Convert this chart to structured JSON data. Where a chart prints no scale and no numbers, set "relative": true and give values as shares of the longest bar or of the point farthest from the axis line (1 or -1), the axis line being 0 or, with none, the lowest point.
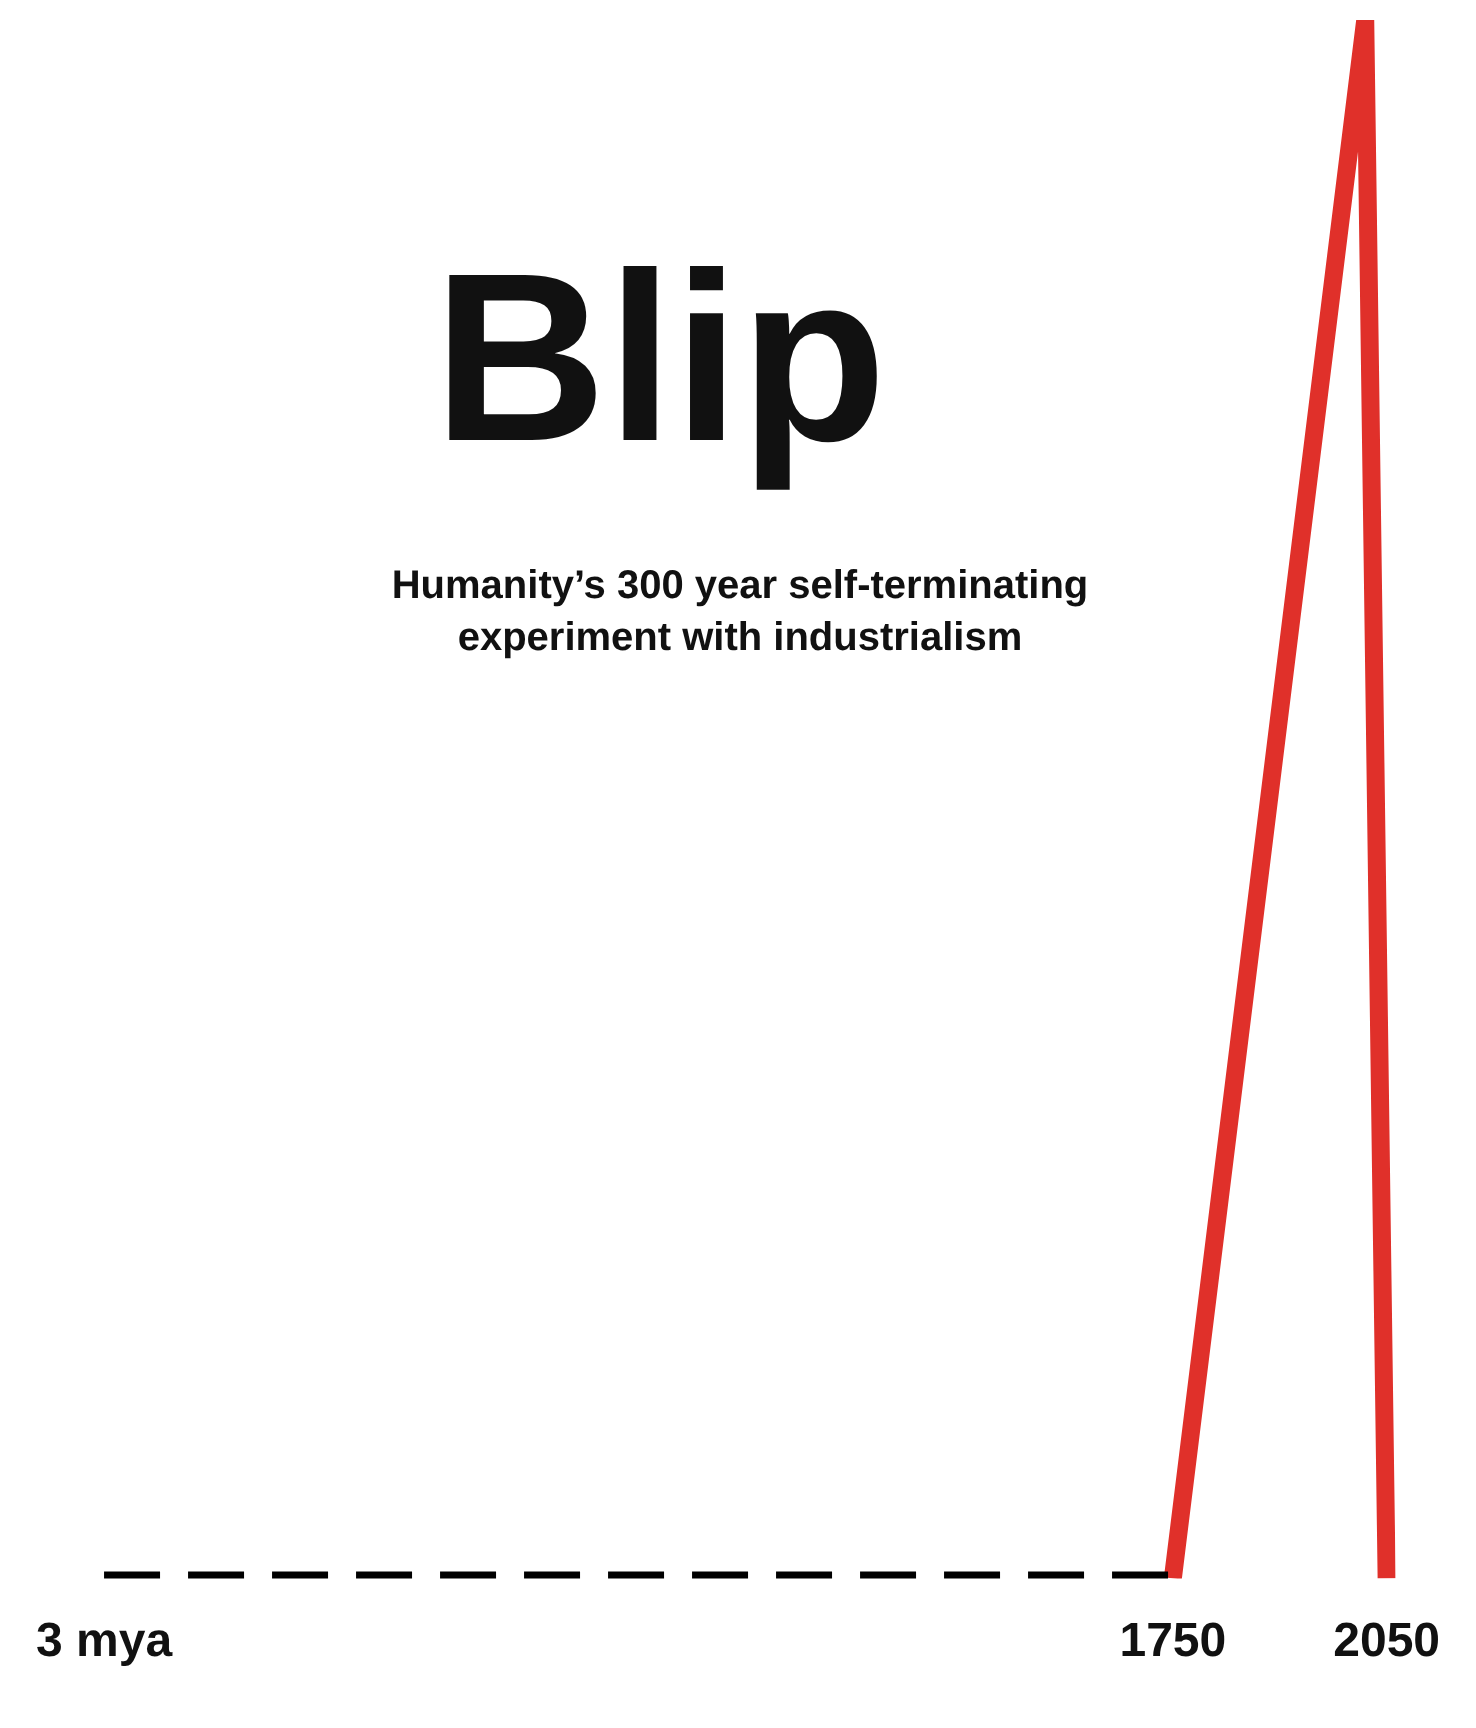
{
  "chart_data": {
    "type": "line",
    "title": "Blip",
    "subtitle": "Humanity’s 300 year self-terminating experiment with industrialism",
    "relative": true,
    "categories": [
      "3 mya",
      null,
      null,
      null,
      null,
      null,
      null,
      null,
      null,
      null,
      null,
      null,
      null,
      null,
      null,
      null,
      null,
      null,
      null,
      null,
      null,
      null,
      null,
      null,
      null,
      null,
      null,
      null,
      null,
      null,
      null,
      null,
      null,
      null,
      null,
      null,
      null,
      null,
      null,
      null,
      null,
      null,
      null,
      null,
      null,
      null,
      null,
      null,
      null,
      null,
      "1750",
      null,
      null,
      null,
      null,
      null,
      null,
      null,
      null,
      null,
      "2050"
    ],
    "series": [
      {
        "values": [
          0,
          null,
          null,
          null,
          null,
          null,
          null,
          null,
          null,
          null,
          null,
          null,
          null,
          null,
          null,
          null,
          null,
          null,
          null,
          null,
          null,
          null,
          null,
          null,
          null,
          null,
          null,
          null,
          null,
          null,
          null,
          null,
          null,
          null,
          null,
          null,
          null,
          null,
          null,
          null,
          null,
          null,
          null,
          null,
          null,
          null,
          null,
          null,
          null,
          null,
          0,
          null,
          null,
          null,
          null,
          null,
          null,
          null,
          null,
          null,
          null
        ],
        "color": "#000000",
        "line_style": "dashed"
      },
      {
        "values": [
          null,
          null,
          null,
          null,
          null,
          null,
          null,
          null,
          null,
          null,
          null,
          null,
          null,
          null,
          null,
          null,
          null,
          null,
          null,
          null,
          null,
          null,
          null,
          null,
          null,
          null,
          null,
          null,
          null,
          null,
          null,
          null,
          null,
          null,
          null,
          null,
          null,
          null,
          null,
          null,
          null,
          null,
          null,
          null,
          null,
          null,
          null,
          null,
          null,
          null,
          0,
          null,
          null,
          null,
          null,
          null,
          null,
          null,
          null,
          1,
          0
        ],
        "color": "#e0302a",
        "line_style": "solid"
      }
    ],
    "grid": false,
    "legend": false,
    "marker": "none"
  }
}
